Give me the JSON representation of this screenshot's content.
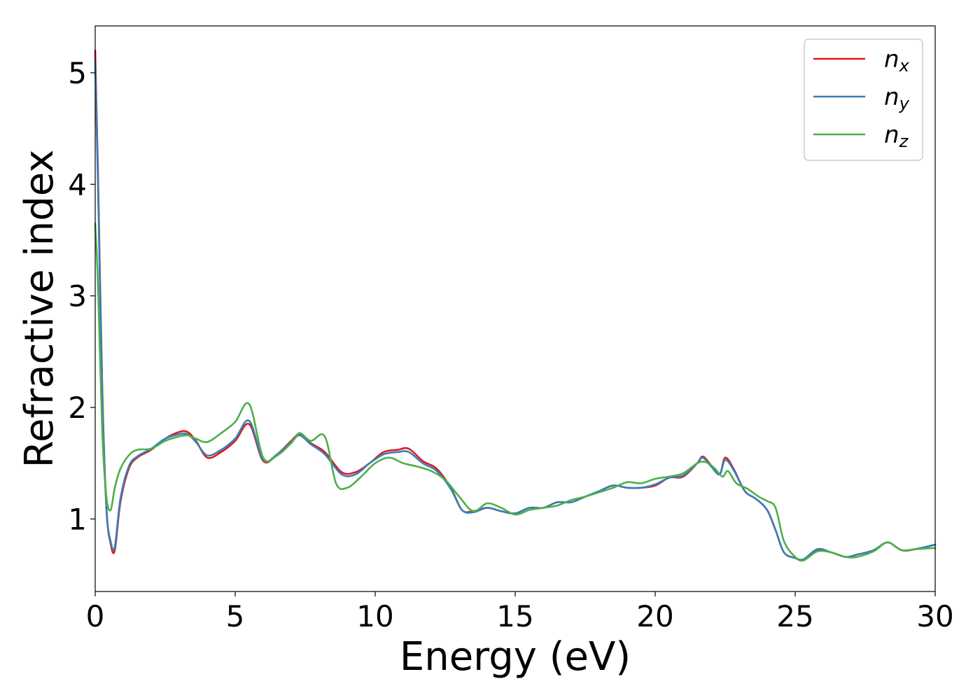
{
  "chart_data": {
    "type": "line",
    "xlabel": "Energy (eV)",
    "ylabel": "Refractive index",
    "xlim": [
      0,
      30
    ],
    "ylim": [
      0.35,
      5.42
    ],
    "xticks": [
      0,
      5,
      10,
      15,
      20,
      25,
      30
    ],
    "yticks": [
      1,
      2,
      3,
      4,
      5
    ],
    "grid": false,
    "legend_position": "top-right",
    "series": [
      {
        "name": "n_x",
        "label_main": "n",
        "label_sub": "x",
        "color": "#e41a1c",
        "x": [
          0,
          0.1,
          0.25,
          0.4,
          0.55,
          0.7,
          0.9,
          1.2,
          1.5,
          2.0,
          2.5,
          3.0,
          3.3,
          3.6,
          4.0,
          4.5,
          5.0,
          5.5,
          6.0,
          6.5,
          7.0,
          7.3,
          7.7,
          8.2,
          8.8,
          9.3,
          9.8,
          10.3,
          10.8,
          11.2,
          11.7,
          12.2,
          12.7,
          13.1,
          13.5,
          14.0,
          14.5,
          15.0,
          15.5,
          16.0,
          16.5,
          17.0,
          17.5,
          18.0,
          18.5,
          19.0,
          19.5,
          20.0,
          20.5,
          21.0,
          21.5,
          21.7,
          22.0,
          22.3,
          22.5,
          22.8,
          23.2,
          23.6,
          24.0,
          24.3,
          24.6,
          25.0,
          25.3,
          25.8,
          26.3,
          26.8,
          27.2,
          27.8,
          28.3,
          28.8,
          29.3,
          30.0
        ],
        "y": [
          5.2,
          4.1,
          2.2,
          1.1,
          0.78,
          0.72,
          1.15,
          1.45,
          1.55,
          1.62,
          1.72,
          1.78,
          1.78,
          1.7,
          1.55,
          1.6,
          1.7,
          1.85,
          1.52,
          1.58,
          1.7,
          1.76,
          1.68,
          1.6,
          1.42,
          1.42,
          1.5,
          1.6,
          1.62,
          1.63,
          1.52,
          1.45,
          1.28,
          1.08,
          1.07,
          1.1,
          1.07,
          1.05,
          1.1,
          1.1,
          1.15,
          1.15,
          1.2,
          1.25,
          1.3,
          1.28,
          1.28,
          1.3,
          1.37,
          1.38,
          1.5,
          1.56,
          1.48,
          1.4,
          1.55,
          1.45,
          1.25,
          1.18,
          1.08,
          0.9,
          0.7,
          0.65,
          0.63,
          0.72,
          0.7,
          0.66,
          0.68,
          0.72,
          0.79,
          0.72,
          0.73,
          0.77
        ]
      },
      {
        "name": "n_y",
        "label_main": "n",
        "label_sub": "y",
        "color": "#377eb8",
        "x": [
          0,
          0.1,
          0.25,
          0.4,
          0.55,
          0.7,
          0.9,
          1.2,
          1.5,
          2.0,
          2.5,
          3.0,
          3.3,
          3.6,
          4.0,
          4.5,
          5.0,
          5.5,
          6.0,
          6.5,
          7.0,
          7.3,
          7.7,
          8.2,
          8.8,
          9.3,
          9.8,
          10.3,
          10.8,
          11.2,
          11.7,
          12.2,
          12.7,
          13.1,
          13.5,
          14.0,
          14.5,
          15.0,
          15.5,
          16.0,
          16.5,
          17.0,
          17.5,
          18.0,
          18.5,
          19.0,
          19.5,
          20.0,
          20.5,
          21.0,
          21.5,
          21.7,
          22.0,
          22.3,
          22.5,
          22.8,
          23.2,
          23.6,
          24.0,
          24.3,
          24.6,
          25.0,
          25.3,
          25.8,
          26.3,
          26.8,
          27.2,
          27.8,
          28.3,
          28.8,
          29.3,
          30.0
        ],
        "y": [
          5.1,
          4.0,
          2.15,
          1.1,
          0.8,
          0.75,
          1.18,
          1.47,
          1.56,
          1.63,
          1.72,
          1.76,
          1.76,
          1.69,
          1.57,
          1.62,
          1.72,
          1.88,
          1.53,
          1.58,
          1.69,
          1.75,
          1.67,
          1.58,
          1.4,
          1.4,
          1.5,
          1.58,
          1.6,
          1.6,
          1.5,
          1.43,
          1.27,
          1.08,
          1.06,
          1.1,
          1.07,
          1.05,
          1.1,
          1.1,
          1.15,
          1.15,
          1.2,
          1.25,
          1.3,
          1.28,
          1.28,
          1.31,
          1.37,
          1.39,
          1.5,
          1.55,
          1.47,
          1.4,
          1.53,
          1.44,
          1.25,
          1.18,
          1.08,
          0.9,
          0.7,
          0.65,
          0.64,
          0.73,
          0.7,
          0.66,
          0.68,
          0.72,
          0.79,
          0.72,
          0.73,
          0.77
        ]
      },
      {
        "name": "n_z",
        "label_main": "n",
        "label_sub": "z",
        "color": "#4daf4a",
        "x": [
          0,
          0.1,
          0.25,
          0.4,
          0.55,
          0.7,
          0.9,
          1.2,
          1.5,
          2.0,
          2.5,
          3.0,
          3.3,
          3.6,
          4.0,
          4.5,
          5.0,
          5.5,
          6.0,
          6.5,
          7.0,
          7.3,
          7.7,
          8.2,
          8.6,
          9.0,
          9.5,
          10.0,
          10.5,
          11.0,
          11.5,
          12.0,
          12.5,
          13.0,
          13.5,
          14.0,
          14.5,
          15.0,
          15.5,
          16.0,
          16.5,
          17.0,
          17.5,
          18.0,
          18.5,
          19.0,
          19.5,
          20.0,
          20.5,
          21.0,
          21.5,
          21.8,
          22.1,
          22.4,
          22.6,
          22.9,
          23.3,
          23.7,
          24.0,
          24.3,
          24.6,
          25.0,
          25.3,
          25.8,
          26.3,
          26.8,
          27.2,
          27.8,
          28.3,
          28.8,
          29.3,
          30.0
        ],
        "y": [
          3.65,
          3.1,
          1.8,
          1.2,
          1.08,
          1.28,
          1.45,
          1.57,
          1.62,
          1.63,
          1.7,
          1.74,
          1.75,
          1.72,
          1.69,
          1.77,
          1.87,
          2.03,
          1.55,
          1.57,
          1.68,
          1.77,
          1.7,
          1.74,
          1.32,
          1.28,
          1.38,
          1.5,
          1.55,
          1.5,
          1.47,
          1.43,
          1.35,
          1.2,
          1.07,
          1.14,
          1.1,
          1.04,
          1.08,
          1.1,
          1.12,
          1.17,
          1.2,
          1.24,
          1.28,
          1.33,
          1.32,
          1.36,
          1.38,
          1.41,
          1.5,
          1.51,
          1.46,
          1.38,
          1.43,
          1.32,
          1.27,
          1.2,
          1.16,
          1.1,
          0.8,
          0.66,
          0.63,
          0.71,
          0.7,
          0.66,
          0.66,
          0.71,
          0.79,
          0.72,
          0.73,
          0.74
        ]
      }
    ]
  }
}
